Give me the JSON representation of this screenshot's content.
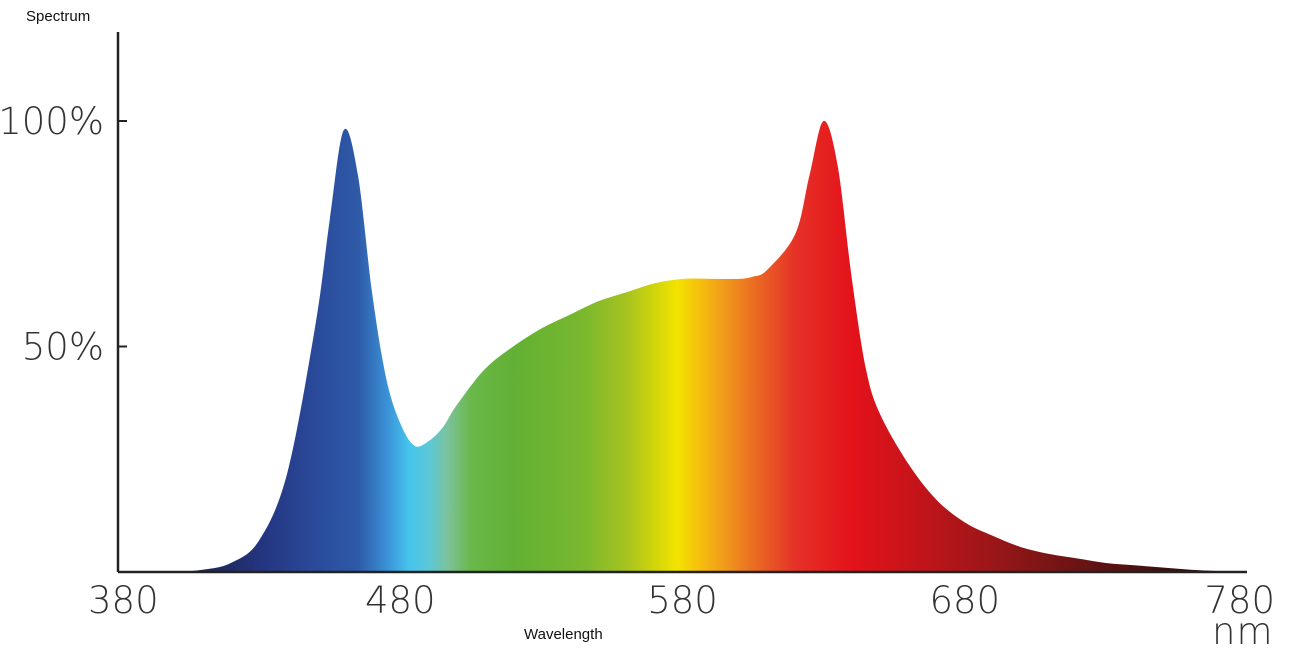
{
  "chart_data": {
    "type": "area",
    "ylabel": "Spectrum",
    "xlabel": "Wavelength",
    "x_unit": "nm",
    "xlim": [
      380,
      780
    ],
    "ylim": [
      0,
      120
    ],
    "x_ticks": [
      "380",
      "480",
      "580",
      "680",
      "780"
    ],
    "y_ticks": [
      {
        "label": "50%",
        "value": 50
      },
      {
        "label": "100%",
        "value": 100
      }
    ],
    "grid": false,
    "series": [
      {
        "x": [
          380,
          390,
          400,
          410,
          420,
          430,
          440,
          450,
          455,
          460,
          465,
          470,
          475,
          480,
          485,
          490,
          495,
          500,
          510,
          520,
          530,
          540,
          550,
          560,
          570,
          580,
          590,
          600,
          605,
          610,
          620,
          625,
          630,
          635,
          640,
          645,
          650,
          660,
          670,
          680,
          690,
          700,
          710,
          720,
          730,
          740,
          750,
          760,
          770,
          780
        ],
        "y": [
          0,
          0,
          0,
          0.5,
          2,
          7,
          22,
          55,
          78,
          98,
          88,
          62,
          43,
          33,
          28,
          29,
          32,
          37,
          45,
          50,
          54,
          57,
          60,
          62,
          64,
          65,
          65,
          65,
          65.5,
          67,
          75,
          88,
          100,
          90,
          65,
          45,
          35,
          24,
          16,
          11,
          8,
          5.5,
          4,
          3,
          2,
          1.5,
          1,
          0.5,
          0.2,
          0
        ]
      }
    ]
  }
}
